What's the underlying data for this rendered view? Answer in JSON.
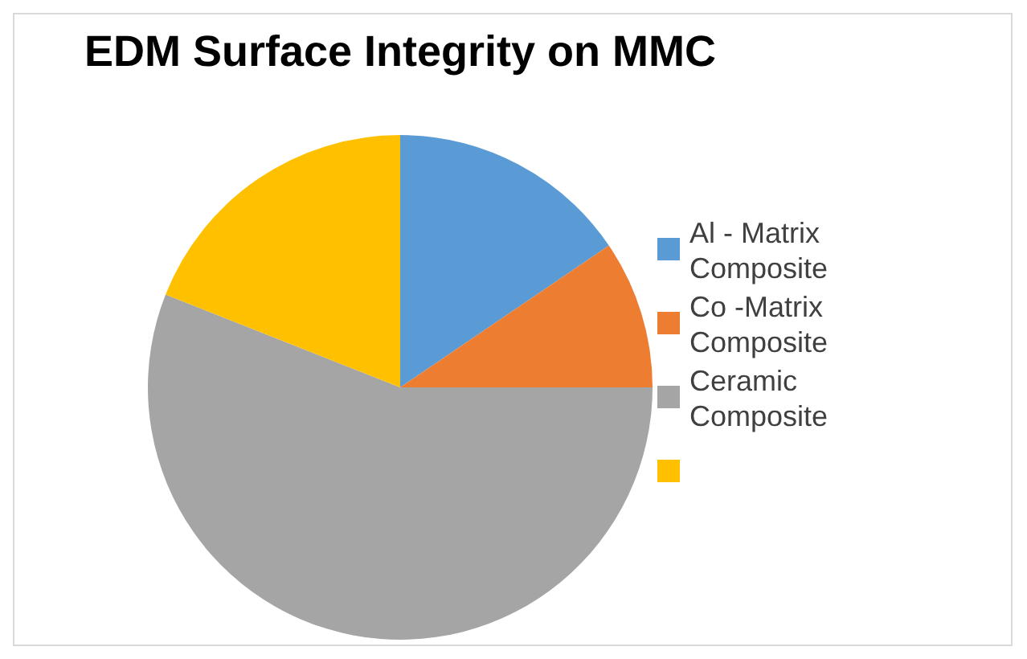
{
  "chart_data": {
    "type": "pie",
    "title": "EDM Surface Integrity on MMC",
    "categories": [
      "Al - Matrix Composite",
      "Co  -Matrix Composite",
      "Ceramic Composite",
      null
    ],
    "values": [
      15.5,
      9.5,
      56,
      19
    ],
    "colors": [
      "#5b9bd5",
      "#ed7d31",
      "#a5a5a5",
      "#ffc000"
    ],
    "legend": "right"
  }
}
